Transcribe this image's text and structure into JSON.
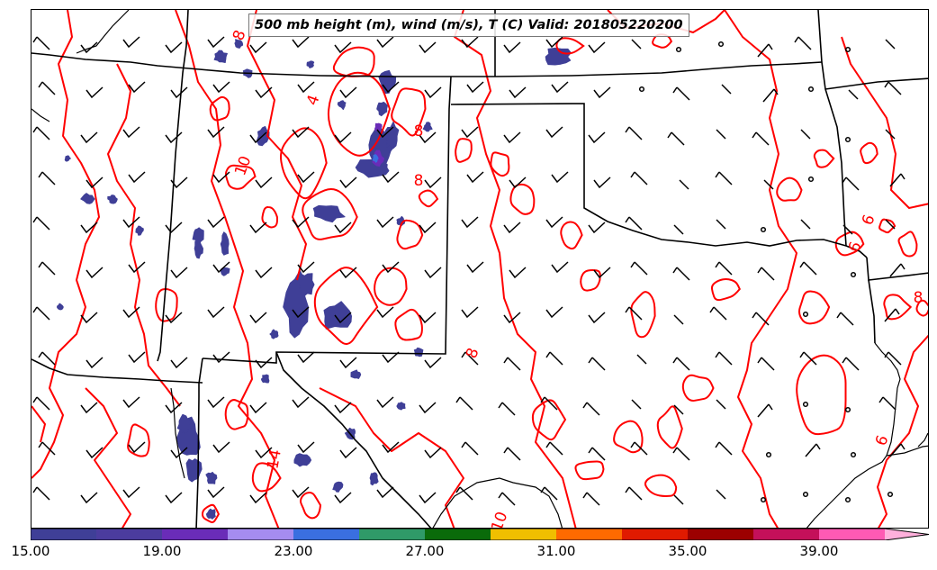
{
  "title": "500 mb height (m), wind (m/s), T (C) Valid: 201805220200",
  "contour_labels": [
    "4",
    "8",
    "10",
    "8",
    "8",
    "8",
    "14",
    "10",
    "6",
    "6",
    "6",
    "8"
  ],
  "colorbar": {
    "tick_labels": [
      "15.00",
      "19.00",
      "23.00",
      "27.00",
      "31.00",
      "35.00",
      "39.00"
    ],
    "tick_values": [
      15,
      19,
      23,
      27,
      31,
      35,
      39
    ],
    "range": [
      15,
      42
    ],
    "colors": [
      "#3f3f97",
      "#4b3c9e",
      "#6a2cb8",
      "#a58cf0",
      "#3a6fe0",
      "#2f9a68",
      "#0a6b0a",
      "#f0bf00",
      "#ff6a00",
      "#e01a00",
      "#9c0000",
      "#c4105a",
      "#ff5ab4",
      "#ffb0dc"
    ]
  },
  "colors": {
    "contour": "#ff0000",
    "wind_shading": "#3f3f97",
    "borders": "#000000"
  }
}
